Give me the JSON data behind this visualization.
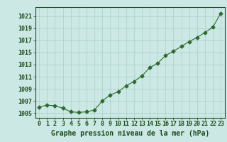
{
  "x": [
    0,
    1,
    2,
    3,
    4,
    5,
    6,
    7,
    8,
    9,
    10,
    11,
    12,
    13,
    14,
    15,
    16,
    17,
    18,
    19,
    20,
    21,
    22,
    23
  ],
  "y": [
    1006.0,
    1006.3,
    1006.2,
    1005.8,
    1005.2,
    1005.1,
    1005.2,
    1005.5,
    1007.0,
    1008.0,
    1008.5,
    1009.5,
    1010.2,
    1011.1,
    1012.5,
    1013.2,
    1014.5,
    1015.2,
    1016.0,
    1016.8,
    1017.5,
    1018.3,
    1019.2,
    1021.5
  ],
  "line_color": "#2d6a2d",
  "marker": "D",
  "markersize": 2.5,
  "bg_color": "#cce8e4",
  "grid_color": "#aacfca",
  "ylabel_ticks": [
    1005,
    1007,
    1009,
    1011,
    1013,
    1015,
    1017,
    1019,
    1021
  ],
  "xlabel": "Graphe pression niveau de la mer (hPa)",
  "ylim": [
    1004.2,
    1022.5
  ],
  "xlim": [
    -0.5,
    23.5
  ],
  "title_color": "#1a4a1a",
  "xlabel_fontsize": 7.0,
  "tick_fontsize": 6.0,
  "linewidth": 0.8
}
